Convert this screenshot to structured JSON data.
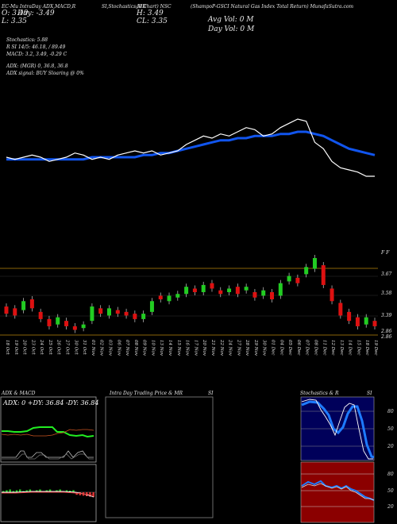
{
  "header": {
    "line1a": "EC-Mu IntraDay ADX,MACD,R",
    "line1b": "SI,Stochastics,MR",
    "line1c": "(0 Chart) NSC",
    "line1d": "(ShampoP-GSCI Natural Gas Index Total Return) MunafaSutra.com",
    "open": "O: 3.49",
    "high": "H: 3.49",
    "close": "CL: 3.35",
    "low": "L: 3.35",
    "day_change": "Day: -3.49",
    "avg_vol": "Avg Vol: 0  M",
    "day_vol": "Day Vol: 0  M"
  },
  "indicators": {
    "stoch": "Stochastics: 5.88",
    "rsi": "R                    SI 14/5: 46.18, / 89.49",
    "macd": "MACD: 3.2, 3.49, -0.29 C",
    "adx": "ADX:                              (MGR) 0, 36.8,  36.8",
    "adx_signal": "ADX  signal:                                    BUY Sloaring @ 0%"
  },
  "price_axis": [
    "F F",
    "3.67",
    "3.58",
    "3.39",
    "2.86",
    "2.86"
  ],
  "chart_data": {
    "type": "candlestick",
    "dates": [
      "18 Oct",
      "19 Oct",
      "20 Oct",
      "23 Oct",
      "24 Oct",
      "25 Oct",
      "26 Oct",
      "27 Oct",
      "30 Oct",
      "31 Oct",
      "01 Nov",
      "02 Nov",
      "03 Nov",
      "06 Nov",
      "07 Nov",
      "08 Nov",
      "09 Nov",
      "10 Nov",
      "13 Nov",
      "14 Nov",
      "15 Nov",
      "16 Nov",
      "17 Nov",
      "20 Nov",
      "21 Nov",
      "22 Nov",
      "24 Nov",
      "27 Nov",
      "28 Nov",
      "29 Nov",
      "30 Nov",
      "01 Dec",
      "04 Dec",
      "05 Dec",
      "06 Dec",
      "07 Dec",
      "08 Dec",
      "11 Dec",
      "12 Dec",
      "13 Dec",
      "14 Dec",
      "15 Dec",
      "18 Dec",
      "19 Dec"
    ],
    "close_line": [
      3.28,
      3.27,
      3.28,
      3.29,
      3.28,
      3.26,
      3.27,
      3.28,
      3.3,
      3.29,
      3.27,
      3.28,
      3.27,
      3.29,
      3.3,
      3.31,
      3.3,
      3.31,
      3.29,
      3.3,
      3.31,
      3.34,
      3.36,
      3.38,
      3.37,
      3.39,
      3.38,
      3.4,
      3.42,
      3.41,
      3.38,
      3.39,
      3.42,
      3.44,
      3.46,
      3.45,
      3.35,
      3.32,
      3.26,
      3.23,
      3.22,
      3.21,
      3.19,
      3.19
    ],
    "ma_line": [
      3.27,
      3.27,
      3.27,
      3.27,
      3.27,
      3.27,
      3.27,
      3.27,
      3.27,
      3.27,
      3.28,
      3.28,
      3.28,
      3.28,
      3.28,
      3.28,
      3.29,
      3.29,
      3.3,
      3.3,
      3.31,
      3.32,
      3.33,
      3.34,
      3.35,
      3.36,
      3.36,
      3.37,
      3.37,
      3.38,
      3.38,
      3.38,
      3.39,
      3.39,
      3.4,
      3.4,
      3.39,
      3.38,
      3.36,
      3.34,
      3.32,
      3.31,
      3.3,
      3.29
    ],
    "candles": [
      {
        "o": 3.37,
        "c": 3.33,
        "up": false
      },
      {
        "o": 3.36,
        "c": 3.32,
        "up": false
      },
      {
        "o": 3.35,
        "c": 3.4,
        "up": true
      },
      {
        "o": 3.41,
        "c": 3.36,
        "up": false
      },
      {
        "o": 3.34,
        "c": 3.3,
        "up": false
      },
      {
        "o": 3.3,
        "c": 3.26,
        "up": false
      },
      {
        "o": 3.27,
        "c": 3.31,
        "up": true
      },
      {
        "o": 3.29,
        "c": 3.26,
        "up": false
      },
      {
        "o": 3.26,
        "c": 3.24,
        "up": false
      },
      {
        "o": 3.25,
        "c": 3.27,
        "up": true
      },
      {
        "o": 3.29,
        "c": 3.37,
        "up": true
      },
      {
        "o": 3.36,
        "c": 3.33,
        "up": false
      },
      {
        "o": 3.32,
        "c": 3.36,
        "up": true
      },
      {
        "o": 3.35,
        "c": 3.33,
        "up": false
      },
      {
        "o": 3.34,
        "c": 3.32,
        "up": false
      },
      {
        "o": 3.33,
        "c": 3.3,
        "up": false
      },
      {
        "o": 3.3,
        "c": 3.33,
        "up": true
      },
      {
        "o": 3.34,
        "c": 3.4,
        "up": true
      },
      {
        "o": 3.43,
        "c": 3.41,
        "up": false
      },
      {
        "o": 3.4,
        "c": 3.43,
        "up": true
      },
      {
        "o": 3.42,
        "c": 3.44,
        "up": true
      },
      {
        "o": 3.44,
        "c": 3.48,
        "up": true
      },
      {
        "o": 3.47,
        "c": 3.45,
        "up": false
      },
      {
        "o": 3.45,
        "c": 3.49,
        "up": true
      },
      {
        "o": 3.5,
        "c": 3.47,
        "up": false
      },
      {
        "o": 3.46,
        "c": 3.44,
        "up": false
      },
      {
        "o": 3.45,
        "c": 3.47,
        "up": true
      },
      {
        "o": 3.48,
        "c": 3.44,
        "up": false
      },
      {
        "o": 3.46,
        "c": 3.48,
        "up": true
      },
      {
        "o": 3.45,
        "c": 3.42,
        "up": false
      },
      {
        "o": 3.43,
        "c": 3.46,
        "up": true
      },
      {
        "o": 3.45,
        "c": 3.41,
        "up": false
      },
      {
        "o": 3.43,
        "c": 3.5,
        "up": true
      },
      {
        "o": 3.51,
        "c": 3.54,
        "up": true
      },
      {
        "o": 3.53,
        "c": 3.5,
        "up": false
      },
      {
        "o": 3.55,
        "c": 3.59,
        "up": true
      },
      {
        "o": 3.58,
        "c": 3.64,
        "up": true
      },
      {
        "o": 3.6,
        "c": 3.49,
        "up": false
      },
      {
        "o": 3.47,
        "c": 3.4,
        "up": false
      },
      {
        "o": 3.39,
        "c": 3.32,
        "up": false
      },
      {
        "o": 3.34,
        "c": 3.29,
        "up": false
      },
      {
        "o": 3.31,
        "c": 3.26,
        "up": false
      },
      {
        "o": 3.27,
        "c": 3.31,
        "up": true
      },
      {
        "o": 3.29,
        "c": 3.26,
        "up": false
      }
    ]
  },
  "panels": {
    "adx_title": "ADX  & MACD",
    "adx_readout": "ADX: 0  +DY: 36.84  -DY: 36.84",
    "intra_title": "Intra  Day Trading Price  & MR",
    "intra_si": "SI",
    "stoch_title": "Stochastics & R",
    "stoch_si": "SI",
    "stoch_axis": [
      "80",
      "50",
      "20",
      "80",
      "50",
      "20"
    ]
  },
  "colors": {
    "bull": "#22cc22",
    "bear": "#dd1111",
    "ma": "#1155ee",
    "stoch_bg": "#00005a",
    "rsi_bg": "#8b0000"
  }
}
